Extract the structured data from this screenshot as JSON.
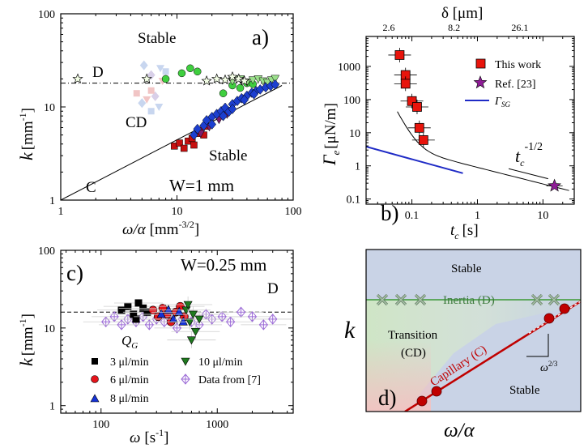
{
  "chart_data": [
    {
      "panel": "a)",
      "type": "scatter",
      "xlabel_main": "ω/α",
      "xlabel_unit": "[mm",
      "xlabel_exp": "-3/2",
      "xlabel_close": "]",
      "ylabel_main": "k",
      "ylabel_unit": "[mm",
      "ylabel_exp": "-1",
      "ylabel_close": "]",
      "xlim": [
        1,
        100
      ],
      "ylim": [
        1,
        100
      ],
      "x_ticks": [
        "1",
        "10",
        "100"
      ],
      "y_ticks": [
        "1",
        "10",
        "100"
      ],
      "annotations": {
        "stable_top": "Stable",
        "stable_bottom": "Stable",
        "D": "D",
        "CD": "CD",
        "C": "C",
        "width": "W=1 mm",
        "panel": "a)"
      },
      "D_level": 18,
      "C_line": [
        [
          1,
          1
        ],
        [
          80,
          17
        ]
      ],
      "series": [
        {
          "name": "red squares",
          "points": [
            [
              9.5,
              3.8
            ],
            [
              10.5,
              4.1
            ],
            [
              11.5,
              3.6
            ],
            [
              12.5,
              4.3
            ],
            [
              13.5,
              4.6
            ],
            [
              14,
              3.9
            ],
            [
              15,
              5.2
            ],
            [
              16,
              5.6
            ],
            [
              17,
              5.0
            ],
            [
              18,
              6.2
            ]
          ]
        },
        {
          "name": "blue diamonds",
          "points": [
            [
              14,
              5.0
            ],
            [
              15,
              5.8
            ],
            [
              17,
              6.3
            ],
            [
              18,
              7.2
            ],
            [
              20,
              7.8
            ],
            [
              22,
              8.4
            ],
            [
              24,
              9.0
            ],
            [
              26,
              9.8
            ],
            [
              28,
              8.9
            ],
            [
              30,
              10.7
            ],
            [
              33,
              11.6
            ],
            [
              36,
              12.4
            ],
            [
              40,
              13.2
            ],
            [
              44,
              14.2
            ],
            [
              48,
              14.8
            ],
            [
              52,
              15.4
            ],
            [
              58,
              16.2
            ],
            [
              64,
              16.8
            ],
            [
              70,
              17.4
            ],
            [
              20,
              6.5
            ],
            [
              25,
              8.0
            ],
            [
              30,
              9.5
            ],
            [
              38,
              11.9
            ],
            [
              46,
              13.7
            ]
          ]
        },
        {
          "name": "purple triangles",
          "points": [
            [
              16,
              5.2
            ],
            [
              19,
              6.1
            ],
            [
              23,
              7.3
            ],
            [
              27,
              8.3
            ]
          ]
        },
        {
          "name": "green circles",
          "points": [
            [
              8,
              20
            ],
            [
              11,
              23
            ],
            [
              13,
              26
            ],
            [
              15,
              24
            ],
            [
              25,
              14
            ],
            [
              30,
              17
            ],
            [
              35,
              16
            ],
            [
              40,
              18
            ],
            [
              45,
              17.6
            ]
          ]
        },
        {
          "name": "light green triangles",
          "points": [
            [
              30,
              19
            ],
            [
              35,
              20
            ],
            [
              40,
              18.5
            ],
            [
              45,
              19.5
            ],
            [
              50,
              20
            ],
            [
              55,
              19
            ],
            [
              60,
              18.3
            ],
            [
              65,
              19.5
            ],
            [
              70,
              20.2
            ]
          ]
        },
        {
          "name": "open stars",
          "points": [
            [
              1.4,
              20
            ],
            [
              5.5,
              20
            ],
            [
              18,
              19
            ],
            [
              22,
              20
            ],
            [
              26,
              19.5
            ],
            [
              30,
              21
            ],
            [
              34,
              20
            ],
            [
              38,
              19
            ]
          ]
        },
        {
          "name": "faded markers",
          "points": [
            [
              4.5,
              14
            ],
            [
              5,
              11
            ],
            [
              5.5,
              12
            ],
            [
              6,
              9
            ],
            [
              6.5,
              13
            ],
            [
              7,
              10
            ],
            [
              6,
              15
            ],
            [
              5.2,
              28
            ],
            [
              7.5,
              19
            ],
            [
              8,
              24
            ],
            [
              6,
              22
            ],
            [
              7.2,
              26
            ]
          ]
        }
      ]
    },
    {
      "panel": "b)",
      "type": "scatter",
      "xlabel_main": "t",
      "xlabel_sub": "c",
      "xlabel_unit": "[s]",
      "ylabel_main": "Γ",
      "ylabel_sub": "e",
      "ylabel_unit": "[μN/m]",
      "top_axis_label": "δ [μm]",
      "top_ticks": [
        "2.6",
        "8.2",
        "26.1"
      ],
      "xlim": [
        0.02,
        30
      ],
      "ylim": [
        0.07,
        8000
      ],
      "x_ticks": [
        "0.1",
        "1",
        "10"
      ],
      "y_ticks": [
        "0.1",
        "1",
        "10",
        "100",
        "1000"
      ],
      "legend": [
        "This work",
        "Ref. [23]",
        "Γ"
      ],
      "legend_sub": "SG",
      "annotations": {
        "panel": "b)",
        "tc_base": "t",
        "tc_sub": "c",
        "tc_exp": "-1/2"
      },
      "series": [
        {
          "name": "This work",
          "points": [
            [
              0.065,
              2200
            ],
            [
              0.08,
              550
            ],
            [
              0.08,
              300
            ],
            [
              0.1,
              90
            ],
            [
              0.12,
              60
            ],
            [
              0.13,
              14
            ],
            [
              0.15,
              6
            ]
          ]
        },
        {
          "name": "Ref. [23]",
          "points": [
            [
              15,
              0.25
            ]
          ]
        },
        {
          "name": "Γ_SG",
          "points": [
            [
              0.02,
              3.8
            ],
            [
              0.6,
              0.6
            ]
          ]
        }
      ]
    },
    {
      "panel": "c)",
      "type": "scatter",
      "xlabel_main": "ω",
      "xlabel_unit": "[s",
      "xlabel_exp": "-1",
      "xlabel_close": "]",
      "ylabel_main": "k",
      "ylabel_unit": "[mm",
      "ylabel_exp": "-1",
      "ylabel_close": "]",
      "xlim": [
        45,
        4500
      ],
      "ylim": [
        0.8,
        100
      ],
      "x_ticks": [
        "100",
        "1000"
      ],
      "y_ticks": [
        "1",
        "10",
        "100"
      ],
      "D_level": 16,
      "annotations": {
        "panel": "c)",
        "width": "W=0.25 mm",
        "D": "D",
        "legend_title": "Q",
        "legend_title_sub": "G"
      },
      "legend": [
        "3 μl/min",
        "6 μl/min",
        "8 μl/min",
        "10 μl/min",
        "Data from [7]"
      ],
      "series": [
        {
          "name": "3 μl/min",
          "points": [
            [
              150,
              17
            ],
            [
              170,
              19
            ],
            [
              190,
              15
            ],
            [
              210,
              21
            ],
            [
              230,
              18
            ],
            [
              250,
              16
            ],
            [
              200,
              13
            ]
          ]
        },
        {
          "name": "6 μl/min",
          "points": [
            [
              280,
              17
            ],
            [
              310,
              14
            ],
            [
              340,
              18
            ],
            [
              370,
              15
            ],
            [
              400,
              12
            ],
            [
              440,
              16
            ],
            [
              480,
              19
            ],
            [
              520,
              14
            ]
          ]
        },
        {
          "name": "8 μl/min",
          "points": [
            [
              330,
              15
            ],
            [
              380,
              17
            ],
            [
              420,
              13
            ],
            [
              470,
              16
            ],
            [
              510,
              12
            ]
          ]
        },
        {
          "name": "10 μl/min",
          "points": [
            [
              540,
              17
            ],
            [
              580,
              12
            ],
            [
              620,
              15
            ],
            [
              650,
              9
            ],
            [
              700,
              13
            ],
            [
              560,
              20
            ],
            [
              600,
              7
            ]
          ]
        },
        {
          "name": "Data from [7]",
          "points": [
            [
              110,
              12
            ],
            [
              130,
              14
            ],
            [
              150,
              11
            ],
            [
              170,
              13
            ],
            [
              200,
              12
            ],
            [
              230,
              14
            ],
            [
              260,
              11
            ],
            [
              300,
              13
            ],
            [
              350,
              12
            ],
            [
              400,
              14
            ],
            [
              450,
              10
            ],
            [
              500,
              13
            ],
            [
              600,
              12
            ],
            [
              700,
              11
            ],
            [
              800,
              15
            ],
            [
              900,
              13
            ],
            [
              1100,
              14
            ],
            [
              1300,
              12
            ],
            [
              1600,
              16
            ],
            [
              2000,
              14
            ],
            [
              2500,
              11
            ],
            [
              3000,
              13
            ]
          ]
        }
      ]
    },
    {
      "panel": "d)",
      "type": "diagram",
      "xlabel": "ω/α",
      "ylabel": "k",
      "labels": {
        "stable_top": "Stable",
        "inertia": "Inertia (D)",
        "transition": "Transition",
        "transition_sub": "(CD)",
        "capillary": "Capillary (C)",
        "stable_bottom": "Stable",
        "slope_base": "ω",
        "slope_exp": "2/3",
        "panel": "d)"
      },
      "colors": {
        "stable_bg": "#c9d3e6",
        "transition_green": "#cfe6c4",
        "corner_red": "#f2c2c2",
        "capillary_line": "#c00000",
        "inertia_line": "#5fa85f"
      }
    }
  ]
}
